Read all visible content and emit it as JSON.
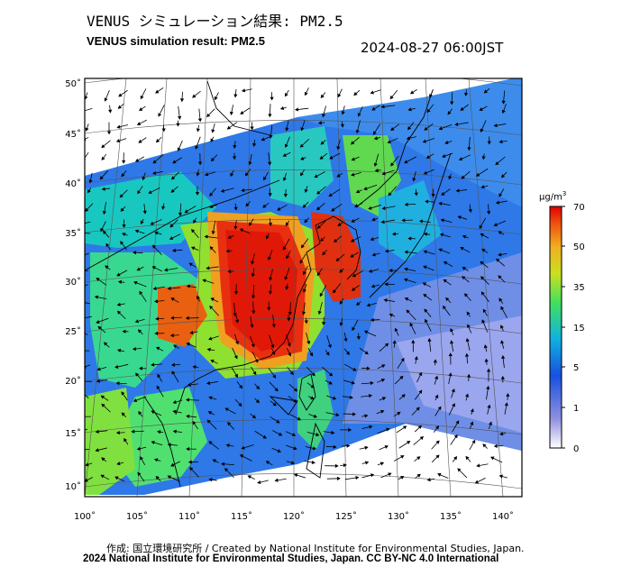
{
  "title_jp": "VENUS シミュレーション結果: PM2.5",
  "title_en": "VENUS simulation result: PM2.5",
  "timestamp": "2024-08-27 06:00JST",
  "lat_labels": [
    "50˚",
    "45˚",
    "40˚",
    "35˚",
    "30˚",
    "25˚",
    "20˚",
    "15˚",
    "10˚"
  ],
  "lon_labels": [
    "100˚",
    "105˚",
    "110˚",
    "115˚",
    "120˚",
    "125˚",
    "130˚",
    "135˚",
    "140˚"
  ],
  "colorbar": {
    "unit_base": "μg/m",
    "unit_exp": "3",
    "ticks": [
      "70",
      "50",
      "35",
      "15",
      "5",
      "1",
      "0"
    ],
    "colors": [
      "#e8e8f6",
      "#8080e0",
      "#2050e0",
      "#10a0f0",
      "#20d0a0",
      "#60e040",
      "#c0e020",
      "#f0c020",
      "#f07010",
      "#e02010"
    ]
  },
  "credit_line1": "作成: 国立環境研究所 / Created by National Institute for Environmental Studies, Japan.",
  "credit_line2": "2024 National Institute for Environmental Studies, Japan. CC BY-NC 4.0 International"
}
